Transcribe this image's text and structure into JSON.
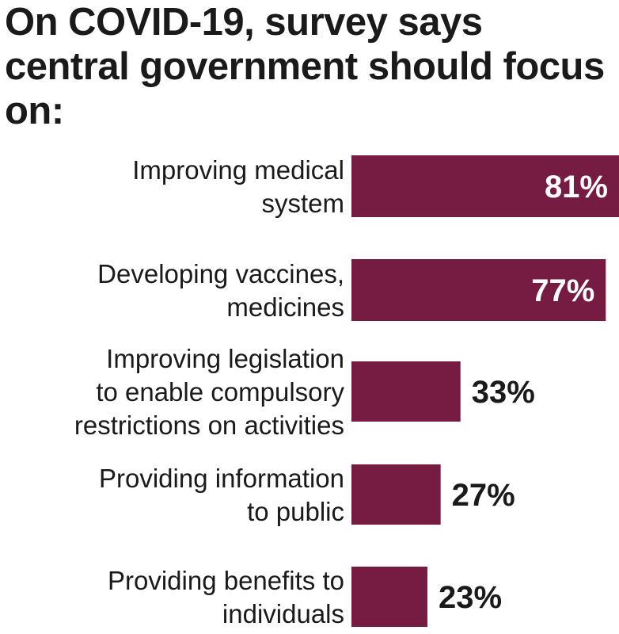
{
  "chart_data": {
    "type": "bar",
    "orientation": "horizontal",
    "title": "On COVID-19, survey says central government should focus on:",
    "categories": [
      [
        "Improving medical",
        "system"
      ],
      [
        "Developing vaccines,",
        "medicines"
      ],
      [
        "Improving legislation",
        "to enable compulsory",
        "restrictions on activities"
      ],
      [
        "Providing information",
        "to public"
      ],
      [
        "Providing benefits to",
        "individuals"
      ]
    ],
    "values": [
      81,
      77,
      33,
      27,
      23
    ],
    "value_labels": [
      "81%",
      "77%",
      "33%",
      "27%",
      "23%"
    ],
    "xlim": [
      0,
      81
    ],
    "grid": false,
    "legend": "none",
    "colors": {
      "bar": "#761c43",
      "inside_label": "#ffffff",
      "outside_label": "#1a1a1a"
    }
  }
}
